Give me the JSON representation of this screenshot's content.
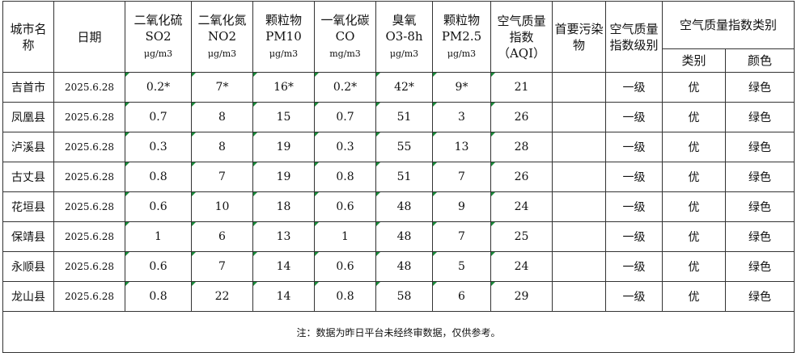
{
  "headers": {
    "city": "城市名称",
    "date": "日期",
    "so2": {
      "name": "二氧化硫",
      "code": "SO2",
      "unit": "μg/m3"
    },
    "no2": {
      "name": "二氧化氮",
      "code": "NO2",
      "unit": "μg/m3"
    },
    "pm10": {
      "name": "颗粒物",
      "code": "PM10",
      "unit": "μg/m3"
    },
    "co": {
      "name": "一氧化碳",
      "code": "CO",
      "unit": "mg/m3"
    },
    "o3": {
      "name": "臭氧",
      "code": "O3-8h",
      "unit": "μg/m3"
    },
    "pm25": {
      "name": "颗粒物",
      "code": "PM2.5",
      "unit": "μg/m3"
    },
    "aqi": {
      "line1": "空气质量",
      "line2": "指数",
      "line3": "（AQI）"
    },
    "primary": "首要污染物",
    "level": "空气质量指数级别",
    "category_group": "空气质量指数类别",
    "category": "类别",
    "color": "颜色"
  },
  "rows": [
    {
      "city": "吉首市",
      "date": "2025.6.28",
      "so2": "0.2*",
      "no2": "7*",
      "pm10": "16*",
      "co": "0.2*",
      "o3": "42*",
      "pm25": "9*",
      "aqi": "21",
      "primary": "",
      "level": "一级",
      "category": "优",
      "color": "绿色"
    },
    {
      "city": "凤凰县",
      "date": "2025.6.28",
      "so2": "0.7",
      "no2": "8",
      "pm10": "15",
      "co": "0.7",
      "o3": "51",
      "pm25": "3",
      "aqi": "26",
      "primary": "",
      "level": "一级",
      "category": "优",
      "color": "绿色"
    },
    {
      "city": "泸溪县",
      "date": "2025.6.28",
      "so2": "0.3",
      "no2": "8",
      "pm10": "19",
      "co": "0.3",
      "o3": "55",
      "pm25": "13",
      "aqi": "28",
      "primary": "",
      "level": "一级",
      "category": "优",
      "color": "绿色"
    },
    {
      "city": "古丈县",
      "date": "2025.6.28",
      "so2": "0.8",
      "no2": "7",
      "pm10": "19",
      "co": "0.8",
      "o3": "51",
      "pm25": "7",
      "aqi": "26",
      "primary": "",
      "level": "一级",
      "category": "优",
      "color": "绿色"
    },
    {
      "city": "花垣县",
      "date": "2025.6.28",
      "so2": "0.6",
      "no2": "10",
      "pm10": "18",
      "co": "0.6",
      "o3": "48",
      "pm25": "9",
      "aqi": "24",
      "primary": "",
      "level": "一级",
      "category": "优",
      "color": "绿色"
    },
    {
      "city": "保靖县",
      "date": "2025.6.28",
      "so2": "1",
      "no2": "6",
      "pm10": "13",
      "co": "1",
      "o3": "48",
      "pm25": "7",
      "aqi": "25",
      "primary": "",
      "level": "一级",
      "category": "优",
      "color": "绿色"
    },
    {
      "city": "永顺县",
      "date": "2025.6.28",
      "so2": "0.6",
      "no2": "7",
      "pm10": "14",
      "co": "0.6",
      "o3": "48",
      "pm25": "5",
      "aqi": "24",
      "primary": "",
      "level": "一级",
      "category": "优",
      "color": "绿色"
    },
    {
      "city": "龙山县",
      "date": "2025.6.28",
      "so2": "0.8",
      "no2": "22",
      "pm10": "14",
      "co": "0.8",
      "o3": "58",
      "pm25": "6",
      "aqi": "29",
      "primary": "",
      "level": "一级",
      "category": "优",
      "color": "绿色"
    }
  ],
  "note": "注：数据为昨日平台未经终审数据，仅供参考。",
  "colors": {
    "corner_marker": "#1a8a3a",
    "border": "#333333"
  }
}
